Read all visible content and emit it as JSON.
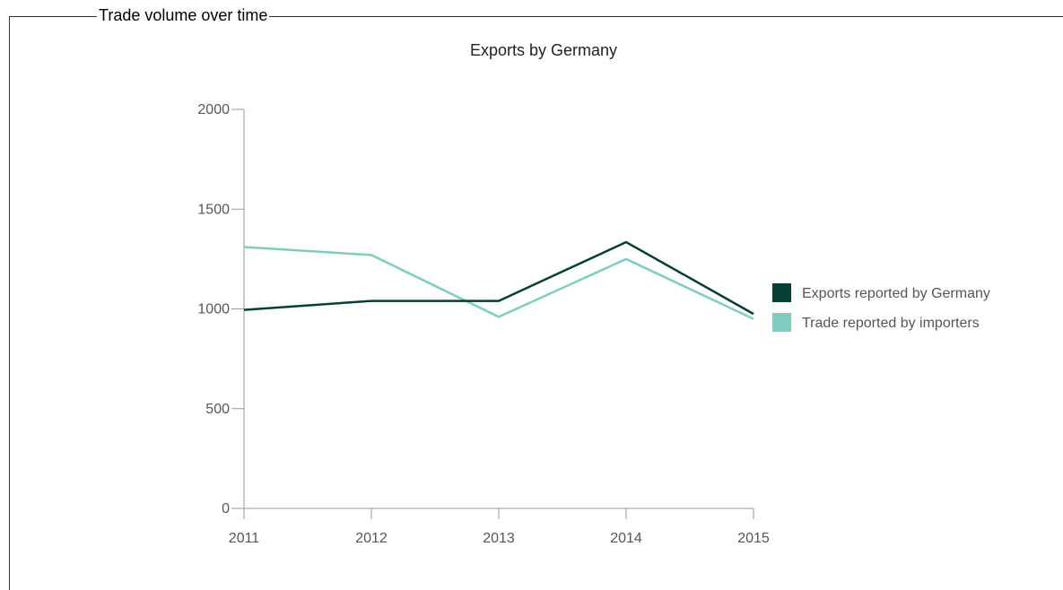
{
  "panel": {
    "legend_title": "Trade volume over time"
  },
  "chart_data": {
    "type": "line",
    "title": "Exports by Germany",
    "xlabel": "",
    "ylabel": "",
    "x": [
      "2011",
      "2012",
      "2013",
      "2014",
      "2015"
    ],
    "ylim": [
      0,
      2000
    ],
    "yticks": [
      0,
      500,
      1000,
      1500,
      2000
    ],
    "grid": false,
    "legend_position": "right",
    "series": [
      {
        "name": "Exports reported by Germany",
        "color": "#073f36",
        "values": [
          995,
          1040,
          1040,
          1335,
          975
        ]
      },
      {
        "name": "Trade reported by importers",
        "color": "#7ecdc0",
        "values": [
          1310,
          1270,
          960,
          1250,
          950
        ]
      }
    ]
  }
}
